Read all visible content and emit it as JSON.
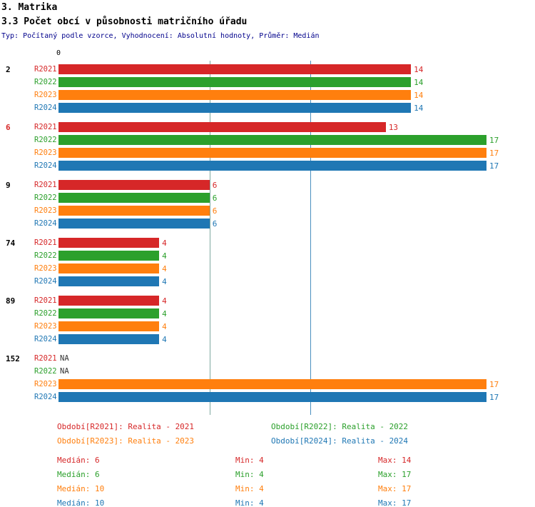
{
  "header": {
    "title": "3. Matrika",
    "subtitle": "3.3 Počet obcí v působnosti matričního úřadu",
    "meta": "Typ: Počítaný podle vzorce, Vyhodnocení: Absolutní hodnoty, Průměr: Medián"
  },
  "chart_data": {
    "type": "bar",
    "orientation": "horizontal",
    "zero_label": "0",
    "x_min": 0,
    "x_max": 17,
    "na_label": "NA",
    "grid": "vertical-median-lines",
    "legend_position": "bottom",
    "series": [
      {
        "label": "R2021",
        "color": "#d62728"
      },
      {
        "label": "R2022",
        "color": "#2ca02c"
      },
      {
        "label": "R2023",
        "color": "#ff7f0e"
      },
      {
        "label": "R2024",
        "color": "#1f77b4"
      }
    ],
    "categories": [
      "2",
      "6",
      "9",
      "74",
      "89",
      "152"
    ],
    "groups": [
      {
        "category": "2",
        "category_color": "#000000",
        "values": [
          14,
          14,
          14,
          14
        ]
      },
      {
        "category": "6",
        "category_color": "#d62728",
        "values": [
          13,
          17,
          17,
          17
        ]
      },
      {
        "category": "9",
        "category_color": "#000000",
        "values": [
          6,
          6,
          6,
          6
        ]
      },
      {
        "category": "74",
        "category_color": "#000000",
        "values": [
          4,
          4,
          4,
          4
        ]
      },
      {
        "category": "89",
        "category_color": "#000000",
        "values": [
          4,
          4,
          4,
          4
        ]
      },
      {
        "category": "152",
        "category_color": "#000000",
        "values": [
          null,
          null,
          17,
          17
        ]
      }
    ],
    "gridlines": [
      {
        "value": 6,
        "color": "#7fa8a0"
      },
      {
        "value": 10,
        "color": "#4a8fbf"
      }
    ],
    "legend": [
      {
        "label": "Období[R2021]: Realita - 2021",
        "color": "#d62728"
      },
      {
        "label": "Období[R2022]: Realita - 2022",
        "color": "#2ca02c"
      },
      {
        "label": "Období[R2023]: Realita - 2023",
        "color": "#ff7f0e"
      },
      {
        "label": "Období[R2024]: Realita - 2024",
        "color": "#1f77b4"
      }
    ],
    "stats": [
      {
        "median_text": "Medián: 6",
        "min_text": "Min: 4",
        "max_text": "Max: 14",
        "color": "#d62728"
      },
      {
        "median_text": "Medián: 6",
        "min_text": "Min: 4",
        "max_text": "Max: 17",
        "color": "#2ca02c"
      },
      {
        "median_text": "Medián: 10",
        "min_text": "Min: 4",
        "max_text": "Max: 17",
        "color": "#ff7f0e"
      },
      {
        "median_text": "Medián: 10",
        "min_text": "Min: 4",
        "max_text": "Max: 17",
        "color": "#1f77b4"
      }
    ]
  }
}
